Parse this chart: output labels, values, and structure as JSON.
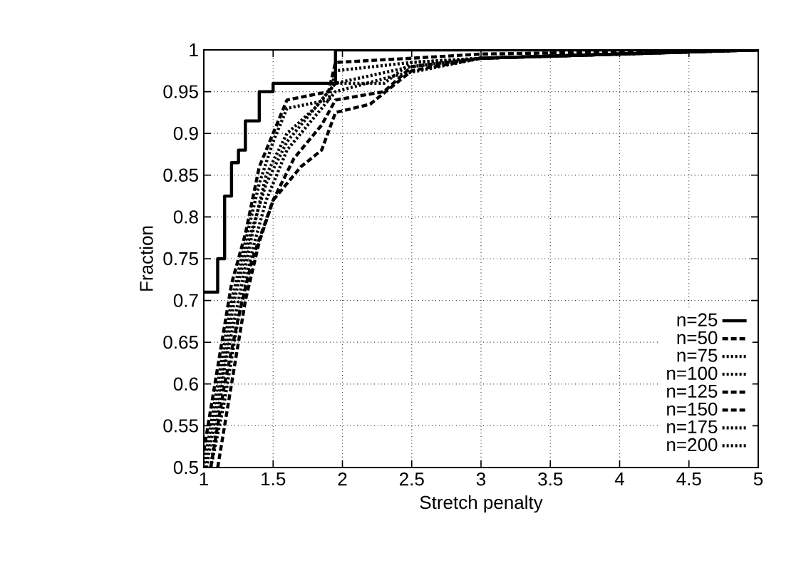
{
  "chart_data": {
    "type": "line",
    "xlabel": "Stretch penalty",
    "ylabel": "Fraction",
    "xlim": [
      1,
      5
    ],
    "ylim": [
      0.5,
      1
    ],
    "xticks": [
      1,
      1.5,
      2,
      2.5,
      3,
      3.5,
      4,
      4.5,
      5
    ],
    "yticks": [
      0.5,
      0.55,
      0.6,
      0.65,
      0.7,
      0.75,
      0.8,
      0.85,
      0.9,
      0.95,
      1
    ],
    "grid": true,
    "legend": "bottom right",
    "series": [
      {
        "name": "n=25",
        "type": "step",
        "color": "#000000",
        "line_style": "solid",
        "x": [
          1,
          1.1,
          1.15,
          1.2,
          1.25,
          1.3,
          1.4,
          1.5,
          1.55,
          1.95,
          5
        ],
        "values": [
          0.71,
          0.75,
          0.825,
          0.865,
          0.88,
          0.915,
          0.95,
          0.96,
          0.96,
          1,
          1
        ]
      },
      {
        "name": "n=50",
        "color": "#000000",
        "line_style": "dashed",
        "x": [
          1,
          1.1,
          1.2,
          1.3,
          1.4,
          1.5,
          1.6,
          1.9,
          1.95,
          2.5,
          3,
          5
        ],
        "values": [
          0.52,
          0.62,
          0.72,
          0.78,
          0.86,
          0.9,
          0.94,
          0.95,
          0.985,
          0.99,
          0.995,
          1
        ]
      },
      {
        "name": "n=75",
        "color": "#000000",
        "line_style": "dotted",
        "x": [
          1,
          1.1,
          1.2,
          1.3,
          1.4,
          1.5,
          1.6,
          1.9,
          1.95,
          2.5,
          3,
          5
        ],
        "values": [
          0.5,
          0.6,
          0.7,
          0.77,
          0.84,
          0.89,
          0.93,
          0.94,
          0.975,
          0.985,
          0.99,
          1
        ]
      },
      {
        "name": "n=100",
        "color": "#000000",
        "line_style": "dotted",
        "x": [
          1.05,
          1.15,
          1.25,
          1.35,
          1.45,
          1.6,
          1.8,
          1.95,
          2.3,
          2.5,
          3,
          5
        ],
        "values": [
          0.5,
          0.62,
          0.7,
          0.78,
          0.85,
          0.9,
          0.93,
          0.96,
          0.96,
          0.985,
          0.99,
          1
        ]
      },
      {
        "name": "n=125",
        "color": "#000000",
        "line_style": "dashed",
        "x": [
          1.1,
          1.2,
          1.3,
          1.4,
          1.5,
          1.7,
          1.85,
          1.95,
          2.2,
          2.5,
          3,
          5
        ],
        "values": [
          0.5,
          0.6,
          0.7,
          0.77,
          0.82,
          0.86,
          0.88,
          0.925,
          0.935,
          0.975,
          0.99,
          1
        ]
      },
      {
        "name": "n=150",
        "color": "#000000",
        "line_style": "dashed",
        "x": [
          1.05,
          1.15,
          1.25,
          1.35,
          1.5,
          1.65,
          1.85,
          1.95,
          2.3,
          2.5,
          3,
          5
        ],
        "values": [
          0.5,
          0.6,
          0.68,
          0.75,
          0.82,
          0.87,
          0.91,
          0.94,
          0.95,
          0.98,
          0.99,
          1
        ]
      },
      {
        "name": "n=175",
        "color": "#000000",
        "line_style": "dotted",
        "x": [
          1.05,
          1.15,
          1.25,
          1.35,
          1.45,
          1.6,
          1.8,
          1.95,
          2.4,
          3,
          5
        ],
        "values": [
          0.5,
          0.58,
          0.68,
          0.76,
          0.82,
          0.88,
          0.92,
          0.95,
          0.97,
          0.99,
          1
        ]
      },
      {
        "name": "n=200",
        "color": "#000000",
        "line_style": "dotted",
        "x": [
          1.02,
          1.12,
          1.22,
          1.32,
          1.45,
          1.6,
          1.8,
          1.95,
          2.5,
          3,
          5
        ],
        "values": [
          0.5,
          0.6,
          0.7,
          0.77,
          0.84,
          0.89,
          0.93,
          0.96,
          0.98,
          0.99,
          1
        ]
      }
    ]
  }
}
